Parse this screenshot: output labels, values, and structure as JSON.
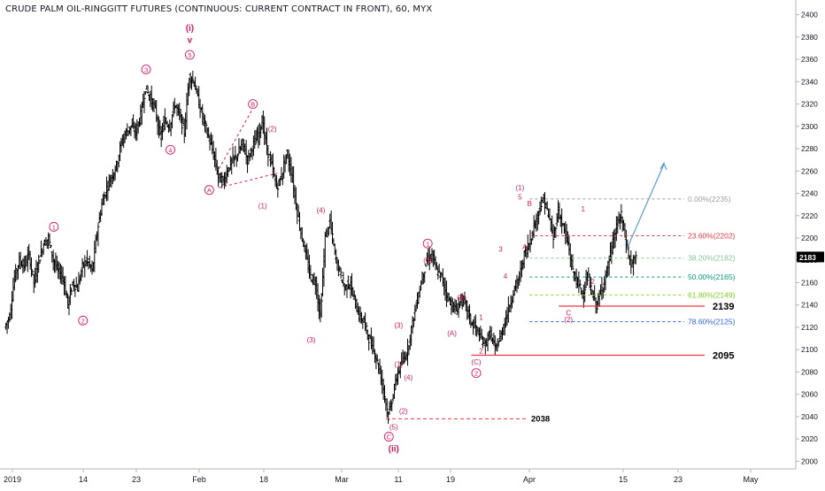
{
  "title": "CRUDE PALM OIL-RINGGITT FUTURES (CONTINUOUS: CURRENT CONTRACT IN FRONT), 60, MYX",
  "colors": {
    "bar": "#000000",
    "wave": "#d81b60",
    "level": "#f23645",
    "projection": "#5b9bd5",
    "axis_text": "#131722",
    "grid": "#e0e3eb",
    "price_tag_bg": "#000000",
    "price_tag_text": "#ffffff"
  },
  "chart_data": {
    "type": "ohlc",
    "timeframe": "60",
    "ylim": [
      1990,
      2410
    ],
    "y_ticks": [
      2000,
      2020,
      2040,
      2060,
      2080,
      2100,
      2120,
      2140,
      2160,
      2180,
      2200,
      2220,
      2240,
      2260,
      2280,
      2300,
      2320,
      2340,
      2360,
      2380,
      2400
    ],
    "x_ticks": [
      "2019",
      "14",
      "23",
      "Feb",
      "18",
      "Mar",
      "11",
      "19",
      "Apr",
      "15",
      "23",
      "May"
    ],
    "current_price": "2183",
    "price_path": [
      [
        0,
        2120
      ],
      [
        1,
        2130
      ],
      [
        2,
        2165
      ],
      [
        3,
        2180
      ],
      [
        4,
        2175
      ],
      [
        5,
        2185
      ],
      [
        6,
        2160
      ],
      [
        7,
        2180
      ],
      [
        8,
        2195
      ],
      [
        9,
        2200
      ],
      [
        10,
        2180
      ],
      [
        11,
        2170
      ],
      [
        12,
        2165
      ],
      [
        13,
        2140
      ],
      [
        14,
        2160
      ],
      [
        15,
        2155
      ],
      [
        16,
        2175
      ],
      [
        17,
        2180
      ],
      [
        18,
        2170
      ],
      [
        19,
        2205
      ],
      [
        20,
        2230
      ],
      [
        21,
        2245
      ],
      [
        22,
        2255
      ],
      [
        23,
        2265
      ],
      [
        24,
        2285
      ],
      [
        25,
        2295
      ],
      [
        26,
        2300
      ],
      [
        27,
        2295
      ],
      [
        28,
        2310
      ],
      [
        29,
        2335
      ],
      [
        30,
        2325
      ],
      [
        31,
        2315
      ],
      [
        32,
        2290
      ],
      [
        33,
        2305
      ],
      [
        34,
        2300
      ],
      [
        35,
        2320
      ],
      [
        36,
        2310
      ],
      [
        37,
        2295
      ],
      [
        38,
        2345
      ],
      [
        39,
        2340
      ],
      [
        40,
        2320
      ],
      [
        41,
        2305
      ],
      [
        42,
        2290
      ],
      [
        43,
        2275
      ],
      [
        44,
        2255
      ],
      [
        45,
        2250
      ],
      [
        46,
        2262
      ],
      [
        47,
        2270
      ],
      [
        48,
        2275
      ],
      [
        49,
        2285
      ],
      [
        50,
        2270
      ],
      [
        51,
        2282
      ],
      [
        52,
        2290
      ],
      [
        53,
        2305
      ],
      [
        54,
        2280
      ],
      [
        55,
        2265
      ],
      [
        56,
        2245
      ],
      [
        57,
        2255
      ],
      [
        58,
        2275
      ],
      [
        59,
        2260
      ],
      [
        60,
        2230
      ],
      [
        61,
        2205
      ],
      [
        62,
        2185
      ],
      [
        63,
        2165
      ],
      [
        64,
        2160
      ],
      [
        65,
        2130
      ],
      [
        66,
        2200
      ],
      [
        67,
        2215
      ],
      [
        68,
        2185
      ],
      [
        69,
        2170
      ],
      [
        70,
        2155
      ],
      [
        71,
        2160
      ],
      [
        72,
        2145
      ],
      [
        73,
        2130
      ],
      [
        74,
        2125
      ],
      [
        75,
        2110
      ],
      [
        76,
        2100
      ],
      [
        77,
        2085
      ],
      [
        78,
        2065
      ],
      [
        79,
        2040
      ],
      [
        80,
        2060
      ],
      [
        81,
        2080
      ],
      [
        82,
        2090
      ],
      [
        83,
        2100
      ],
      [
        84,
        2125
      ],
      [
        85,
        2145
      ],
      [
        86,
        2165
      ],
      [
        87,
        2180
      ],
      [
        88,
        2185
      ],
      [
        89,
        2170
      ],
      [
        90,
        2165
      ],
      [
        91,
        2150
      ],
      [
        92,
        2140
      ],
      [
        93,
        2135
      ],
      [
        94,
        2145
      ],
      [
        95,
        2140
      ],
      [
        96,
        2125
      ],
      [
        97,
        2120
      ],
      [
        98,
        2110
      ],
      [
        99,
        2105
      ],
      [
        100,
        2115
      ],
      [
        101,
        2100
      ],
      [
        102,
        2110
      ],
      [
        103,
        2125
      ],
      [
        104,
        2140
      ],
      [
        105,
        2155
      ],
      [
        106,
        2165
      ],
      [
        107,
        2185
      ],
      [
        108,
        2195
      ],
      [
        109,
        2210
      ],
      [
        110,
        2225
      ],
      [
        111,
        2235
      ],
      [
        112,
        2220
      ],
      [
        113,
        2200
      ],
      [
        114,
        2225
      ],
      [
        115,
        2210
      ],
      [
        116,
        2195
      ],
      [
        117,
        2170
      ],
      [
        118,
        2160
      ],
      [
        119,
        2150
      ],
      [
        120,
        2165
      ],
      [
        121,
        2150
      ],
      [
        122,
        2140
      ],
      [
        123,
        2155
      ],
      [
        124,
        2170
      ],
      [
        125,
        2190
      ],
      [
        126,
        2210
      ],
      [
        127,
        2220
      ],
      [
        128,
        2195
      ],
      [
        129,
        2175
      ],
      [
        130,
        2183
      ]
    ],
    "fibonacci_levels": [
      {
        "label": "0.00%(2235)",
        "value": 2235,
        "color": "#9e9e9e"
      },
      {
        "label": "23.60%(2202)",
        "value": 2202,
        "color": "#f23645"
      },
      {
        "label": "38.20%(2182)",
        "value": 2182,
        "color": "#81c995"
      },
      {
        "label": "50.00%(2165)",
        "value": 2165,
        "color": "#089981"
      },
      {
        "label": "61.80%(2149)",
        "value": 2149,
        "color": "#7ed321"
      },
      {
        "label": "78.60%(2125)",
        "value": 2125,
        "color": "#2962ff"
      }
    ],
    "horizontal_levels": [
      {
        "label": "2139",
        "value": 2139
      },
      {
        "label": "2095",
        "value": 2095
      },
      {
        "label": "2038",
        "value": 2038
      }
    ],
    "wave_labels": [
      {
        "text": "(i)",
        "i": 38,
        "y": 2388,
        "style": "bold-paren"
      },
      {
        "text": "v",
        "i": 38,
        "y": 2377,
        "style": "bold-plain"
      },
      {
        "text": "5",
        "i": 38,
        "y": 2364,
        "style": "circle"
      },
      {
        "text": "3",
        "i": 29,
        "y": 2351,
        "style": "circle"
      },
      {
        "text": "4",
        "i": 34,
        "y": 2279,
        "style": "circle"
      },
      {
        "text": "1",
        "i": 10,
        "y": 2210,
        "style": "circle"
      },
      {
        "text": "2",
        "i": 16,
        "y": 2126,
        "style": "circle"
      },
      {
        "text": "A",
        "i": 42,
        "y": 2243,
        "style": "circle"
      },
      {
        "text": "B",
        "i": 51,
        "y": 2320,
        "style": "circle"
      },
      {
        "text": "C",
        "i": 79,
        "y": 2022,
        "style": "circle"
      },
      {
        "text": "(2)",
        "i": 55,
        "y": 2298,
        "style": "paren"
      },
      {
        "text": "(1)",
        "i": 53,
        "y": 2229,
        "style": "paren"
      },
      {
        "text": "(4)",
        "i": 65,
        "y": 2225,
        "style": "paren"
      },
      {
        "text": "(3)",
        "i": 63,
        "y": 2109,
        "style": "paren"
      },
      {
        "text": "(3)",
        "i": 81,
        "y": 2122,
        "style": "paren"
      },
      {
        "text": "(1)",
        "i": 81,
        "y": 2087,
        "style": "paren"
      },
      {
        "text": "(4)",
        "i": 83,
        "y": 2075,
        "style": "paren"
      },
      {
        "text": "(2)",
        "i": 82,
        "y": 2045,
        "style": "paren"
      },
      {
        "text": "(5)",
        "i": 80,
        "y": 2031,
        "style": "paren"
      },
      {
        "text": "(ii)",
        "i": 80,
        "y": 2011,
        "style": "bold-paren"
      },
      {
        "text": "1",
        "i": 87,
        "y": 2195,
        "style": "circle"
      },
      {
        "text": "(5)",
        "i": 87,
        "y": 2180,
        "style": "paren"
      },
      {
        "text": "(B)",
        "i": 94,
        "y": 2147,
        "style": "paren"
      },
      {
        "text": "(A)",
        "i": 92,
        "y": 2115,
        "style": "paren"
      },
      {
        "text": "(C)",
        "i": 97,
        "y": 2089,
        "style": "paren"
      },
      {
        "text": "2",
        "i": 97,
        "y": 2079,
        "style": "circle"
      },
      {
        "text": "1",
        "i": 98,
        "y": 2129,
        "style": "plain"
      },
      {
        "text": "2",
        "i": 98,
        "y": 2099,
        "style": "plain"
      },
      {
        "text": "3",
        "i": 102,
        "y": 2190,
        "style": "plain"
      },
      {
        "text": "4",
        "i": 103,
        "y": 2166,
        "style": "plain"
      },
      {
        "text": "(1)",
        "i": 106,
        "y": 2245,
        "style": "paren"
      },
      {
        "text": "5",
        "i": 106,
        "y": 2237,
        "style": "plain"
      },
      {
        "text": "B",
        "i": 108,
        "y": 2231,
        "style": "plain"
      },
      {
        "text": "A",
        "i": 107,
        "y": 2192,
        "style": "plain"
      },
      {
        "text": "(2)",
        "i": 116,
        "y": 2127,
        "style": "paren"
      },
      {
        "text": "C",
        "i": 116,
        "y": 2133,
        "style": "plain"
      },
      {
        "text": "1",
        "i": 119,
        "y": 2226,
        "style": "plain"
      },
      {
        "text": "2",
        "i": 121,
        "y": 2161,
        "style": "plain"
      }
    ]
  }
}
